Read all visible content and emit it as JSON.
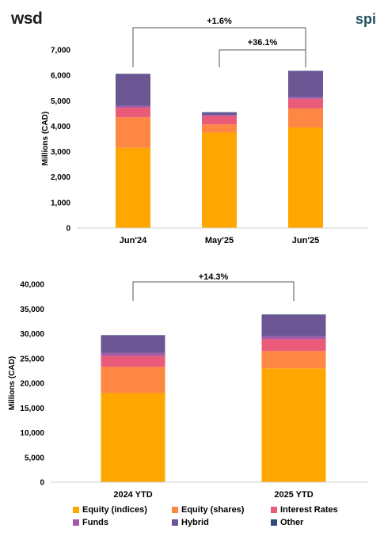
{
  "brand": {
    "left_logo": "wsd",
    "right_logo": "spi"
  },
  "series_colors": {
    "Equity (indices)": "#ffa600",
    "Equity (shares)": "#ff8744",
    "Interest Rates": "#ea5b7a",
    "Funds": "#a35ba8",
    "Hybrid": "#6b5593",
    "Other": "#2f4b7c"
  },
  "chart_data": [
    {
      "type": "bar",
      "stacked": true,
      "categories": [
        "Jun'24",
        "May'25",
        "Jun'25"
      ],
      "ylabel": "Millions (CAD)",
      "ylim": [
        0,
        7000
      ],
      "yticks": [
        0,
        1000,
        2000,
        3000,
        4000,
        5000,
        6000,
        7000
      ],
      "ytick_labels": [
        "0",
        "1,000",
        "2,000",
        "3,000",
        "4,000",
        "5,000",
        "6,000",
        "7,000"
      ],
      "series": [
        {
          "name": "Equity (indices)",
          "values": [
            3150,
            3750,
            3950
          ]
        },
        {
          "name": "Equity (shares)",
          "values": [
            1200,
            320,
            750
          ]
        },
        {
          "name": "Interest Rates",
          "values": [
            380,
            330,
            380
          ]
        },
        {
          "name": "Funds",
          "values": [
            70,
            40,
            60
          ]
        },
        {
          "name": "Hybrid",
          "values": [
            1250,
            80,
            1030
          ]
        },
        {
          "name": "Other",
          "values": [
            10,
            30,
            10
          ]
        }
      ],
      "annotations": [
        {
          "text": "+1.6%",
          "from": "Jun'24",
          "to": "Jun'25"
        },
        {
          "text": "+36.1%",
          "from": "May'25",
          "to": "Jun'25"
        }
      ]
    },
    {
      "type": "bar",
      "stacked": true,
      "categories": [
        "2024 YTD",
        "2025 YTD"
      ],
      "ylabel": "Millions (CAD)",
      "ylim": [
        0,
        40000
      ],
      "yticks": [
        0,
        5000,
        10000,
        15000,
        20000,
        25000,
        30000,
        35000,
        40000
      ],
      "ytick_labels": [
        "0",
        "5,000",
        "10,000",
        "15,000",
        "20,000",
        "25,000",
        "30,000",
        "35,000",
        "40,000"
      ],
      "series": [
        {
          "name": "Equity (indices)",
          "values": [
            18000,
            23000
          ]
        },
        {
          "name": "Equity (shares)",
          "values": [
            5300,
            3500
          ]
        },
        {
          "name": "Interest Rates",
          "values": [
            2200,
            2400
          ]
        },
        {
          "name": "Funds",
          "values": [
            600,
            600
          ]
        },
        {
          "name": "Hybrid",
          "values": [
            3500,
            4300
          ]
        },
        {
          "name": "Other",
          "values": [
            100,
            100
          ]
        }
      ],
      "annotations": [
        {
          "text": "+14.3%",
          "from": "2024 YTD",
          "to": "2025 YTD"
        }
      ]
    }
  ],
  "legend": [
    "Equity (indices)",
    "Equity (shares)",
    "Interest Rates",
    "Funds",
    "Hybrid",
    "Other"
  ]
}
